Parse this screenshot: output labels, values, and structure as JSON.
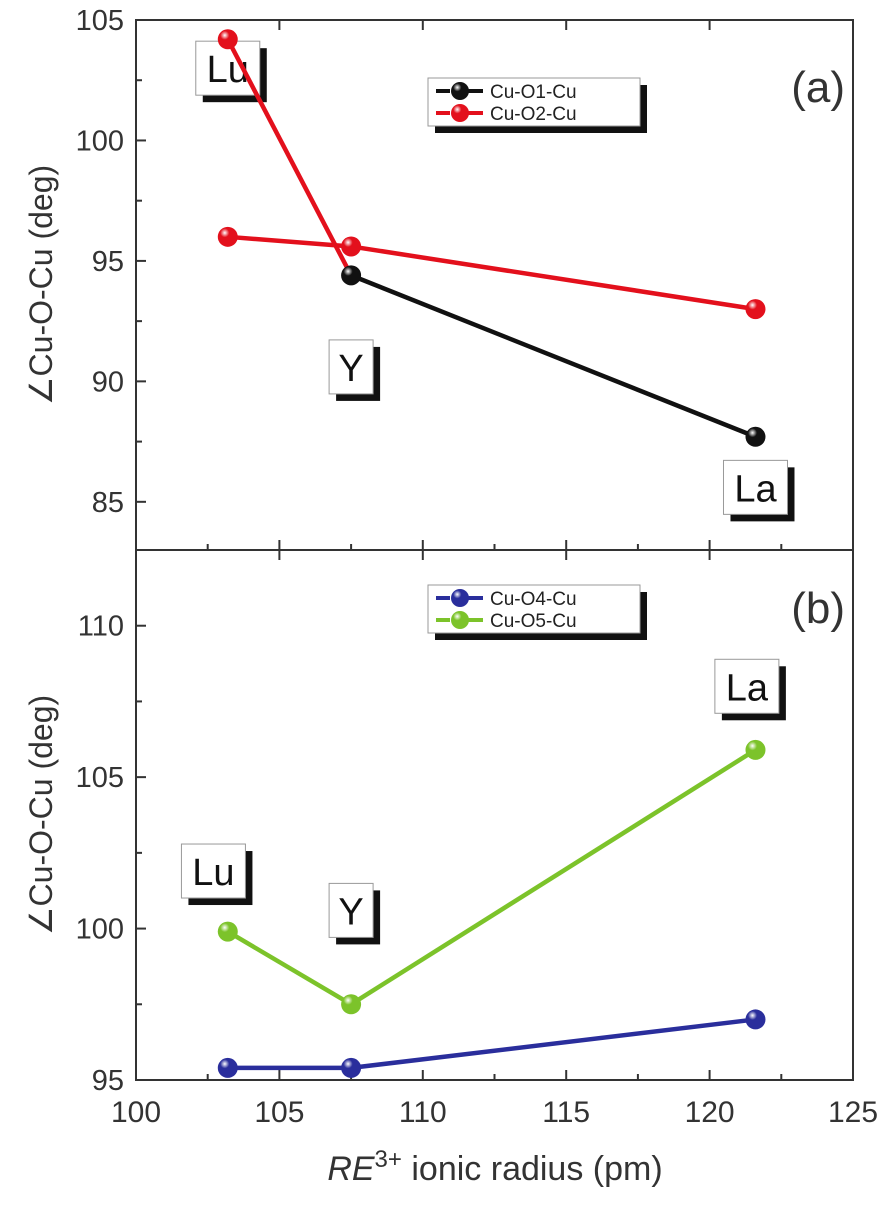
{
  "chart_data": [
    {
      "type": "line",
      "panel_label": "(a)",
      "ylabel": "∠Cu-O-Cu  (deg)",
      "xlabel_italic": "RE",
      "xlabel_sup": "3+",
      "xlabel_rest": " ionic radius (pm)",
      "xlim": [
        100,
        125
      ],
      "ylim": [
        83,
        105
      ],
      "xticks": [
        "100",
        "105",
        "110",
        "115",
        "120",
        "125"
      ],
      "xtick_values": [
        100,
        105,
        110,
        115,
        120,
        125
      ],
      "yticks": [
        "85",
        "90",
        "95",
        "100",
        "105"
      ],
      "ytick_values": [
        85,
        90,
        95,
        100,
        105
      ],
      "legend_position": "top-center",
      "series": [
        {
          "name": "Cu-O1-Cu",
          "color": "#111111",
          "x": [
            103.2,
            107.5,
            121.6
          ],
          "y": [
            104.2,
            94.4,
            87.7
          ],
          "point_colors": [
            "#e3101c",
            "#111111",
            "#111111"
          ],
          "segment_colors": [
            "#e3101c",
            "#111111"
          ]
        },
        {
          "name": "Cu-O2-Cu",
          "color": "#e3101c",
          "x": [
            103.2,
            107.5,
            121.6
          ],
          "y": [
            96.0,
            95.6,
            93.0
          ]
        }
      ],
      "annotations": [
        {
          "text": "Lu",
          "x": 103.2,
          "y": 103.0
        },
        {
          "text": "Y",
          "x": 107.5,
          "y": 90.6
        },
        {
          "text": "La",
          "x": 121.6,
          "y": 85.6
        }
      ]
    },
    {
      "type": "line",
      "panel_label": "(b)",
      "ylabel": "∠Cu-O-Cu  (deg)",
      "xlim": [
        100,
        125
      ],
      "ylim": [
        95,
        112.5
      ],
      "yticks": [
        "95",
        "100",
        "105",
        "110"
      ],
      "ytick_values": [
        95,
        100,
        105,
        110
      ],
      "legend_position": "top-center",
      "series": [
        {
          "name": "Cu-O4-Cu",
          "color": "#2a2e9c",
          "x": [
            103.2,
            107.5,
            121.6
          ],
          "y": [
            95.4,
            95.4,
            97.0
          ]
        },
        {
          "name": "Cu-O5-Cu",
          "color": "#7cc32a",
          "x": [
            103.2,
            107.5,
            121.6
          ],
          "y": [
            99.9,
            97.5,
            105.9
          ]
        }
      ],
      "annotations": [
        {
          "text": "La",
          "x": 121.3,
          "y": 108.0
        },
        {
          "text": "Lu",
          "x": 102.7,
          "y": 101.9
        },
        {
          "text": "Y",
          "x": 107.5,
          "y": 100.6
        }
      ]
    }
  ]
}
